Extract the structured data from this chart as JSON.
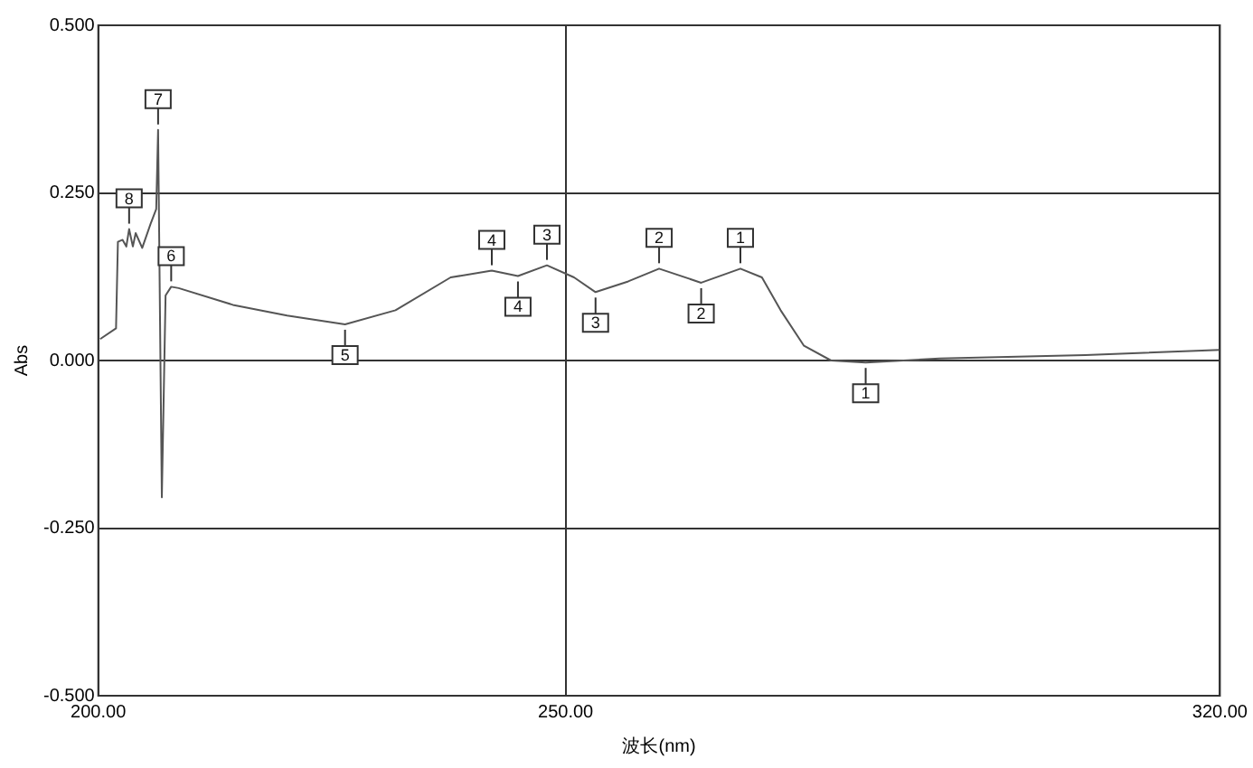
{
  "chart_data": {
    "type": "line",
    "xlabel": "波长(nm)",
    "ylabel": "Abs",
    "grid": true,
    "legend": false,
    "marker": "none",
    "line_style": "solid",
    "xlim": [
      200,
      320
    ],
    "xticks": [
      {
        "value": 200,
        "label": "200.00"
      },
      {
        "value": 250,
        "label": "250.00"
      },
      {
        "value": 320,
        "label": "320.00"
      }
    ],
    "ylim": [
      -0.5,
      0.5
    ],
    "yticks": [
      {
        "value": -0.5,
        "label": "-0.500"
      },
      {
        "value": -0.25,
        "label": "-0.250"
      },
      {
        "value": 0,
        "label": "0.000"
      },
      {
        "value": 0.25,
        "label": "0.250"
      },
      {
        "value": 0.5,
        "label": "0.500"
      }
    ],
    "series": [
      {
        "color": "#555555",
        "x": [
          200.2,
          201.9,
          202.1,
          202.6,
          203.0,
          203.3,
          203.7,
          204.0,
          204.7,
          205.6,
          206.2,
          206.4,
          206.8,
          207.2,
          207.8,
          208.6,
          214.4,
          220.2,
          226.4,
          231.8,
          237.7,
          242.1,
          244.9,
          248.0,
          250.9,
          253.2,
          256.7,
          260.0,
          264.5,
          268.7,
          271.0,
          273.0,
          275.5,
          278.4,
          282.1,
          290.0,
          305.6,
          320.0
        ],
        "values": [
          0.032,
          0.048,
          0.177,
          0.18,
          0.17,
          0.196,
          0.17,
          0.19,
          0.168,
          0.204,
          0.226,
          0.344,
          -0.204,
          0.097,
          0.11,
          0.108,
          0.083,
          0.067,
          0.054,
          0.075,
          0.124,
          0.134,
          0.126,
          0.142,
          0.124,
          0.102,
          0.118,
          0.137,
          0.116,
          0.137,
          0.124,
          0.075,
          0.022,
          0.0,
          -0.003,
          0.003,
          0.008,
          0.016
        ]
      }
    ],
    "annotations": [
      {
        "text": "8",
        "x": 203.3,
        "y": 0.196
      },
      {
        "text": "7",
        "x": 206.4,
        "y": 0.344
      },
      {
        "text": "6",
        "x": 207.8,
        "y": 0.11
      },
      {
        "text": "5",
        "x": 226.4,
        "y": 0.054
      },
      {
        "text": "4",
        "x": 242.1,
        "y": 0.134
      },
      {
        "text": "4",
        "x": 244.9,
        "y": 0.126
      },
      {
        "text": "3",
        "x": 248.0,
        "y": 0.142
      },
      {
        "text": "3",
        "x": 253.2,
        "y": 0.102
      },
      {
        "text": "2",
        "x": 260.0,
        "y": 0.137
      },
      {
        "text": "2",
        "x": 264.5,
        "y": 0.116
      },
      {
        "text": "1",
        "x": 268.7,
        "y": 0.137
      },
      {
        "text": "1",
        "x": 282.1,
        "y": -0.003
      }
    ]
  }
}
